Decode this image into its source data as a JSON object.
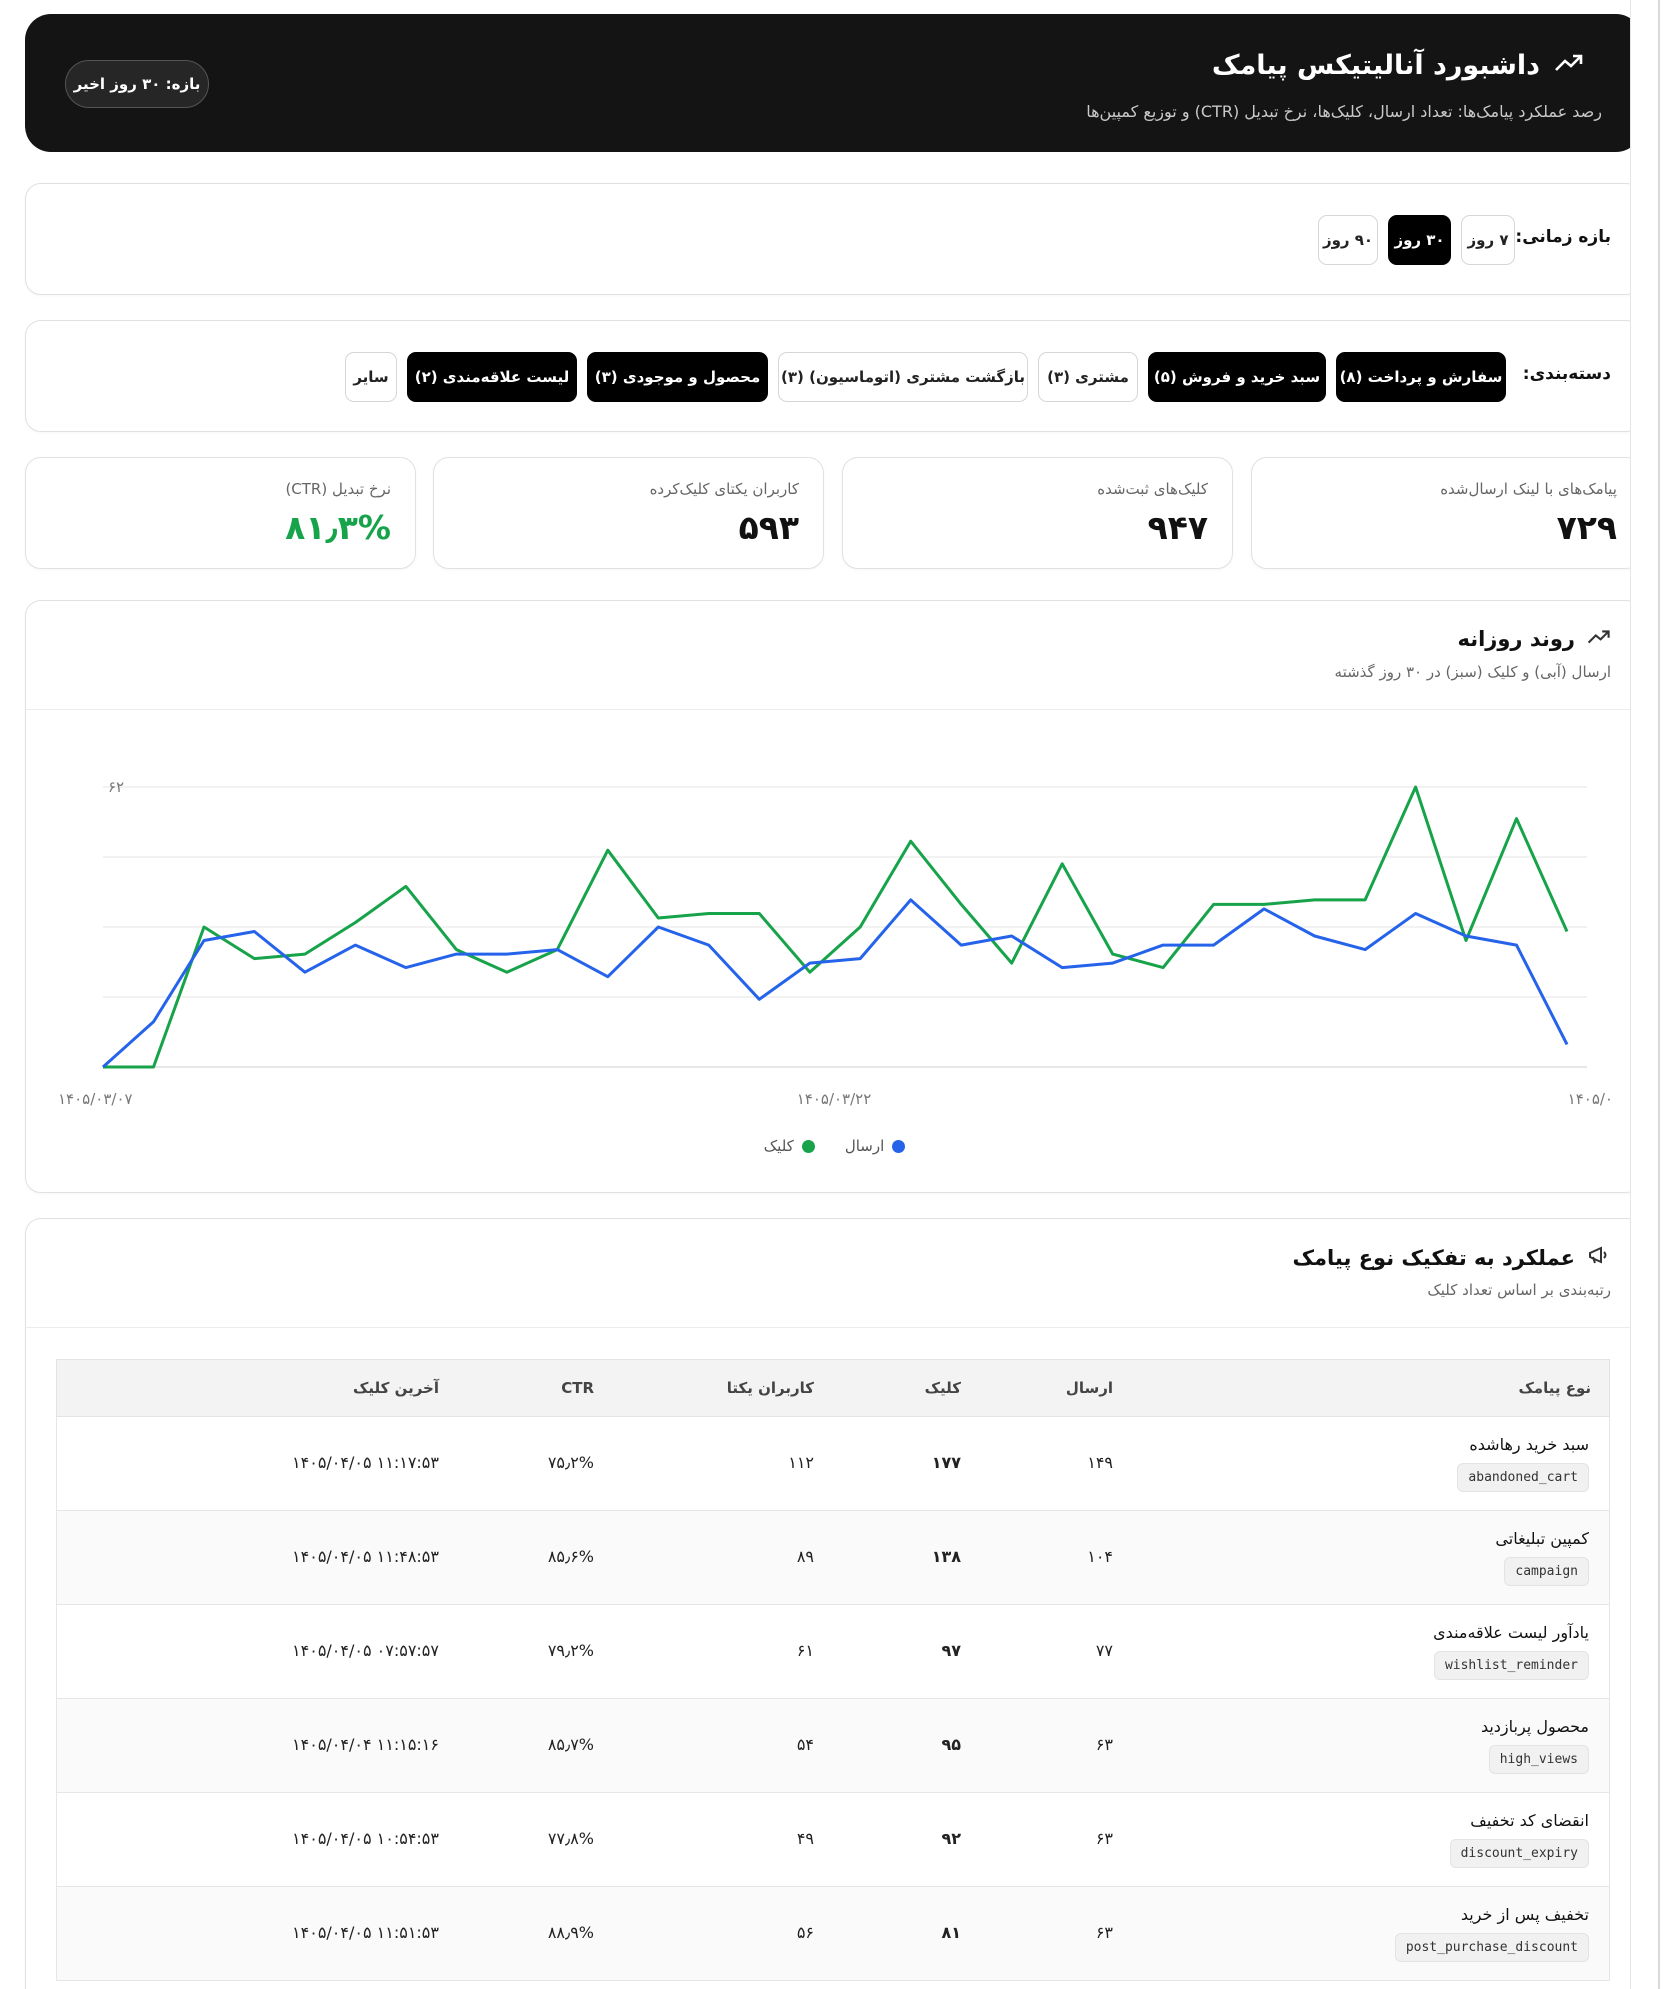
{
  "header": {
    "title": "داشبورد آنالیتیکس پیامک",
    "subtitle": "رصد عملکرد پیامک‌ها: تعداد ارسال، کلیک‌ها، نرخ تبدیل (CTR) و توزیع کمپین‌ها",
    "range_badge": "بازه: ۳۰ روز اخیر",
    "trend_icon": "↗"
  },
  "time_filter": {
    "label": "بازه زمانی:",
    "options": [
      "۷ روز",
      "۳۰ روز",
      "۹۰ روز"
    ],
    "active": "۳۰ روز"
  },
  "category_filter": {
    "label": "دسته‌بندی:",
    "options": [
      {
        "label": "سفارش و پرداخت (۸)",
        "active": true
      },
      {
        "label": "سبد خرید و فروش (۵)",
        "active": true
      },
      {
        "label": "مشتری (۳)",
        "active": false
      },
      {
        "label": "بازگشت مشتری (اتوماسیون) (۳)",
        "active": false
      },
      {
        "label": "محصول و موجودی (۳)",
        "active": true
      },
      {
        "label": "لیست علاقه‌مندی (۲)",
        "active": true
      },
      {
        "label": "سایر",
        "active": false
      }
    ]
  },
  "stats": [
    {
      "label": "پیامک‌های با لینک ارسال‌شده",
      "value": "۷۲۹"
    },
    {
      "label": "کلیک‌های ثبت‌شده",
      "value": "۹۴۷"
    },
    {
      "label": "کاربران یکتای کلیک‌کرده",
      "value": "۵۹۳"
    },
    {
      "label": "نرخ تبدیل (CTR)",
      "value": "۸۱٫۳%"
    }
  ],
  "trend": {
    "title": "روند روزانه",
    "subtitle": "ارسال (آبی) و کلیک (سبز) در ۳۰ روز گذشته",
    "legend_send": "ارسال",
    "legend_click": "کلیک"
  },
  "chart_data": {
    "type": "line",
    "ylim": [
      0,
      62
    ],
    "y_tick_label": "۶۲",
    "x_tick_labels": [
      "۱۴۰۵/۰۳/۰۷",
      "۱۴۰۵/۰۳/۲۲",
      "۱۴۰۵/۰"
    ],
    "colors": {
      "send": "#2563eb",
      "click": "#16a34a"
    },
    "grid": true,
    "series": [
      {
        "name": "ارسال",
        "values": [
          0,
          10,
          28,
          30,
          21,
          27,
          22,
          25,
          25,
          26,
          20,
          31,
          27,
          15,
          23,
          24,
          37,
          27,
          29,
          22,
          23,
          27,
          27,
          35,
          29,
          26,
          34,
          29,
          27,
          5
        ]
      },
      {
        "name": "کلیک",
        "values": [
          0,
          0,
          31,
          24,
          25,
          32,
          40,
          26,
          21,
          26,
          48,
          33,
          34,
          34,
          21,
          31,
          50,
          36,
          23,
          45,
          25,
          22,
          36,
          36,
          37,
          37,
          62,
          28,
          55,
          30
        ]
      }
    ]
  },
  "performance": {
    "title": "عملکرد به تفکیک نوع پیامک",
    "subtitle": "رتبه‌بندی بر اساس تعداد کلیک",
    "columns": [
      "نوع پیامک",
      "ارسال",
      "کلیک",
      "کاربران یکتا",
      "CTR",
      "آخرین کلیک"
    ],
    "rows": [
      {
        "name": "سبد خرید رهاشده",
        "code": "abandoned_cart",
        "send": "۱۴۹",
        "click": "۱۷۷",
        "unique": "۱۱۲",
        "ctr": "۷۵٫۲%",
        "last": "۱۴۰۵/۰۴/۰۵ ۱۱:۱۷:۵۳"
      },
      {
        "name": "کمپین تبلیغاتی",
        "code": "campaign",
        "send": "۱۰۴",
        "click": "۱۳۸",
        "unique": "۸۹",
        "ctr": "۸۵٫۶%",
        "last": "۱۴۰۵/۰۴/۰۵ ۱۱:۴۸:۵۳"
      },
      {
        "name": "یادآور لیست علاقه‌مندی",
        "code": "wishlist_reminder",
        "send": "۷۷",
        "click": "۹۷",
        "unique": "۶۱",
        "ctr": "۷۹٫۲%",
        "last": "۱۴۰۵/۰۴/۰۵ ۰۷:۵۷:۵۷"
      },
      {
        "name": "محصول پربازدید",
        "code": "high_views",
        "send": "۶۳",
        "click": "۹۵",
        "unique": "۵۴",
        "ctr": "۸۵٫۷%",
        "last": "۱۴۰۵/۰۴/۰۴ ۱۱:۱۵:۱۶"
      },
      {
        "name": "انقضای کد تخفیف",
        "code": "discount_expiry",
        "send": "۶۳",
        "click": "۹۲",
        "unique": "۴۹",
        "ctr": "۷۷٫۸%",
        "last": "۱۴۰۵/۰۴/۰۵ ۱۰:۵۴:۵۳"
      },
      {
        "name": "تخفیف پس از خرید",
        "code": "post_purchase_discount",
        "send": "۶۳",
        "click": "۸۱",
        "unique": "۵۶",
        "ctr": "۸۸٫۹%",
        "last": "۱۴۰۵/۰۴/۰۵ ۱۱:۵۱:۵۳"
      }
    ]
  }
}
